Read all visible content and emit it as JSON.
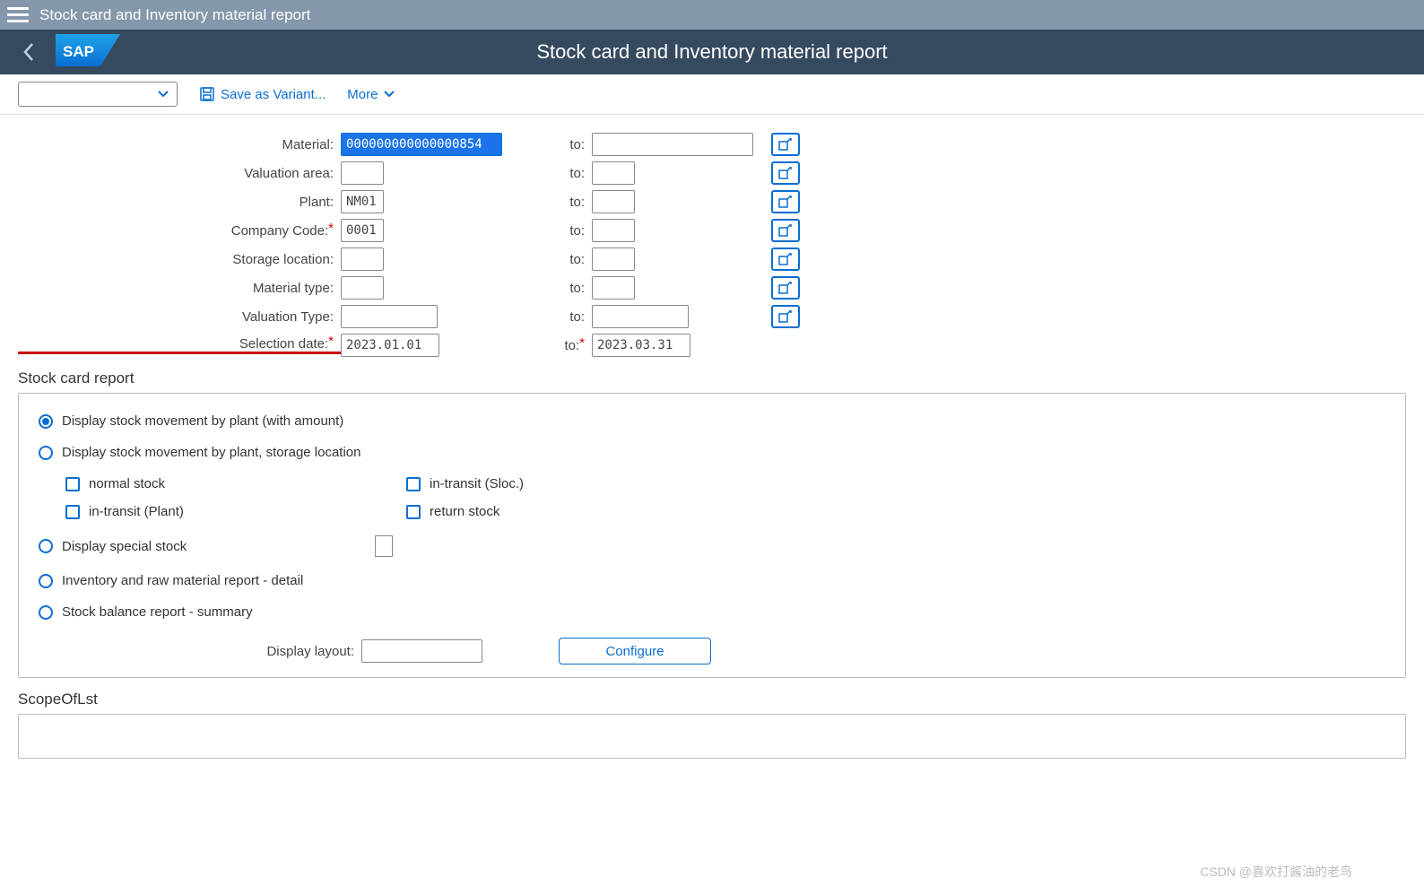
{
  "shell": {
    "title": "Stock card and Inventory material report"
  },
  "header": {
    "page_title": "Stock card and Inventory material report"
  },
  "toolbar": {
    "save_variant": "Save as Variant...",
    "more": "More"
  },
  "selection": {
    "rows": [
      {
        "label": "Material:",
        "req": false,
        "from": "000000000000000854",
        "from_w": "w-long",
        "from_hl": true,
        "to": "",
        "to_w": "w-long",
        "range": true,
        "underline": false
      },
      {
        "label": "Valuation area:",
        "req": false,
        "from": "",
        "from_w": "w-sm",
        "from_hl": false,
        "to": "",
        "to_w": "w-sm",
        "range": true,
        "underline": false
      },
      {
        "label": "Plant:",
        "req": false,
        "from": "NM01",
        "from_w": "w-sm",
        "from_hl": false,
        "to": "",
        "to_w": "w-sm",
        "range": true,
        "underline": false
      },
      {
        "label": "Company Code:",
        "req": true,
        "from": "0001",
        "from_w": "w-sm",
        "from_hl": false,
        "to": "",
        "to_w": "w-sm",
        "range": true,
        "underline": false
      },
      {
        "label": "Storage location:",
        "req": false,
        "from": "",
        "from_w": "w-sm",
        "from_hl": false,
        "to": "",
        "to_w": "w-sm",
        "range": true,
        "underline": false
      },
      {
        "label": "Material type:",
        "req": false,
        "from": "",
        "from_w": "w-sm",
        "from_hl": false,
        "to": "",
        "to_w": "w-sm",
        "range": true,
        "underline": false
      },
      {
        "label": "Valuation Type:",
        "req": false,
        "from": "",
        "from_w": "w-med",
        "from_hl": false,
        "to": "",
        "to_w": "w-med",
        "range": true,
        "underline": false
      },
      {
        "label": "Selection date:",
        "req": true,
        "from": "2023.01.01",
        "from_w": "w-date",
        "from_hl": false,
        "to": "2023.03.31",
        "to_w": "w-date",
        "to_req": true,
        "range": false,
        "underline": true
      }
    ],
    "to_label": "to:"
  },
  "stock_card": {
    "title": "Stock card report",
    "radios": {
      "r1": "Display stock movement by plant (with amount)",
      "r2": "Display stock movement by plant, storage location",
      "r3": "Display special stock",
      "r4": "Inventory and raw material report - detail",
      "r5": "Stock balance report - summary"
    },
    "checks": {
      "c1": "normal stock",
      "c2": "in-transit (Sloc.)",
      "c3": "in-transit (Plant)",
      "c4": "return stock"
    },
    "layout_label": "Display layout:",
    "configure": "Configure"
  },
  "scope": {
    "title": "ScopeOfLst"
  },
  "watermark": "CSDN @喜欢打酱油的老鸟"
}
